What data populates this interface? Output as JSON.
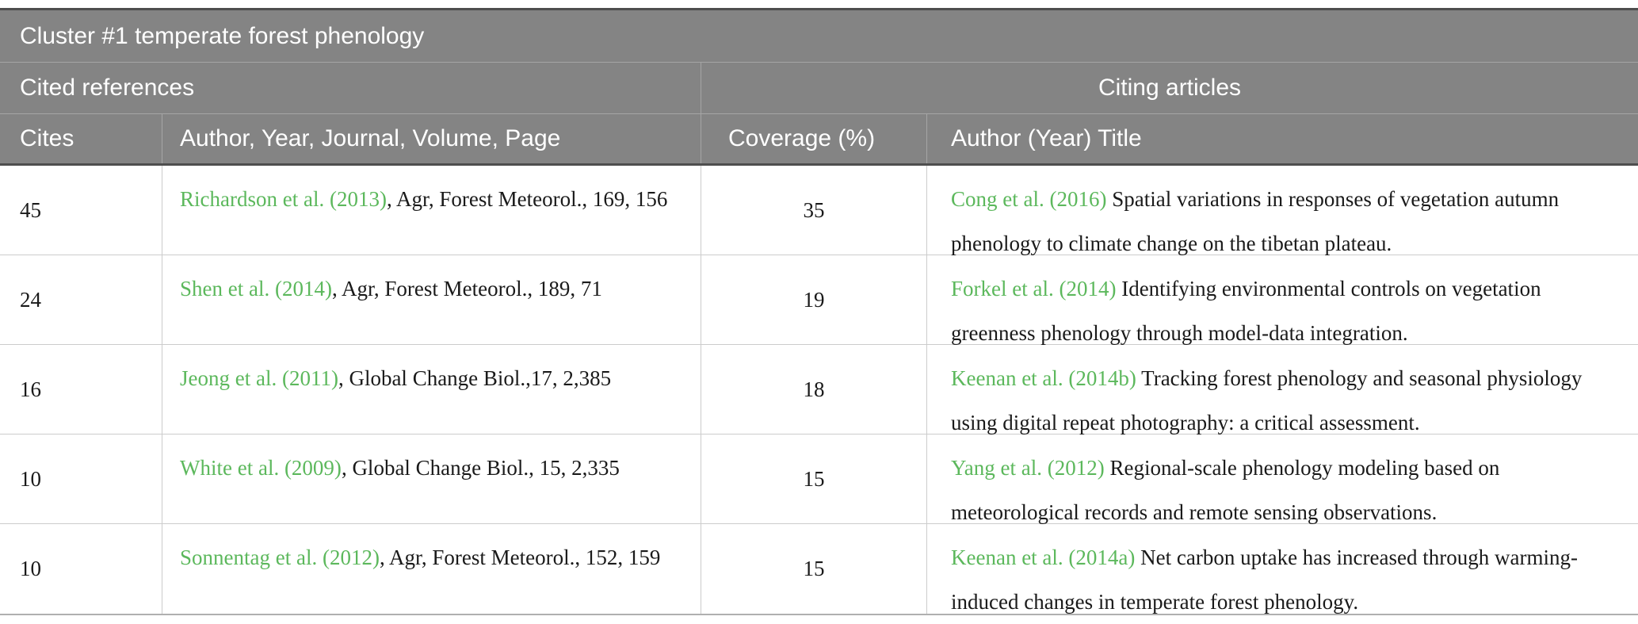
{
  "colors": {
    "header_bg": "#848484",
    "header_text": "#ffffff",
    "link_green": "#5cb85c",
    "body_text": "#1a1a1a",
    "grid_line": "#cccccc",
    "header_rule_dark": "#4e4e4e"
  },
  "table": {
    "title": "Cluster #1 temperate forest phenology",
    "group_headers": {
      "cited": "Cited references",
      "citing": "Citing articles"
    },
    "column_headers": {
      "cites": "Cites",
      "reference": "Author, Year, Journal, Volume, Page",
      "coverage": "Coverage (%)",
      "citing": "Author (Year) Title"
    },
    "rows": [
      {
        "cites": "45",
        "ref_link": "Richardson et al. (2013)",
        "ref_rest": ", Agr, Forest Meteorol., 169, 156",
        "coverage": "35",
        "citing_link": "Cong et al. (2016)",
        "citing_rest": " Spatial variations in responses of vegetation autumn phenology to climate change on the tibetan plateau."
      },
      {
        "cites": "24",
        "ref_link": "Shen et al. (2014)",
        "ref_rest": ", Agr, Forest Meteorol., 189, 71",
        "coverage": "19",
        "citing_link": "Forkel et al. (2014)",
        "citing_rest": " Identifying environmental controls on vegetation greenness phenology through model-data integration."
      },
      {
        "cites": "16",
        "ref_link": "Jeong et al. (2011)",
        "ref_rest": ", Global Change Biol.,17, 2,385",
        "coverage": "18",
        "citing_link": "Keenan et al. (2014b)",
        "citing_rest": " Tracking forest phenology and seasonal physiology using digital repeat photography: a critical assessment."
      },
      {
        "cites": "10",
        "ref_link": "White et al. (2009)",
        "ref_rest": ", Global Change Biol., 15, 2,335",
        "coverage": "15",
        "citing_link": "Yang et al. (2012)",
        "citing_rest": " Regional-scale phenology modeling based on meteorological records and remote sensing observations."
      },
      {
        "cites": "10",
        "ref_link": "Sonnentag et al. (2012)",
        "ref_rest": ", Agr, Forest Meteorol., 152, 159",
        "coverage": "15",
        "citing_link": "Keenan et al. (2014a)",
        "citing_rest": " Net carbon uptake has increased through warming-induced changes in temperate forest phenology."
      }
    ]
  }
}
